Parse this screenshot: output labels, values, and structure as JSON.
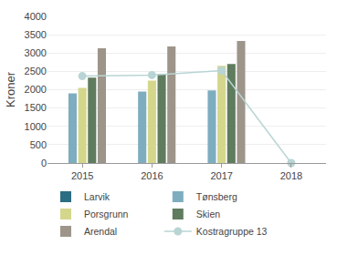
{
  "chart_data": {
    "type": "bar",
    "y_label": "Kroner",
    "categories": [
      "2015",
      "2016",
      "2017",
      "2018"
    ],
    "series": [
      {
        "name": "Larvik",
        "color": "#2b6e83",
        "type": "bar",
        "values": [
          null,
          null,
          null,
          null
        ]
      },
      {
        "name": "Tønsberg",
        "color": "#7dadbf",
        "type": "bar",
        "values": [
          1900,
          1950,
          1980,
          null
        ]
      },
      {
        "name": "Porsgrunn",
        "color": "#d4d68c",
        "type": "bar",
        "values": [
          2050,
          2250,
          2650,
          null
        ]
      },
      {
        "name": "Skien",
        "color": "#5f7c5e",
        "type": "bar",
        "values": [
          2330,
          2420,
          2700,
          null
        ]
      },
      {
        "name": "Arendal",
        "color": "#9d958a",
        "type": "bar",
        "values": [
          3130,
          3180,
          3330,
          null
        ]
      },
      {
        "name": "Kostragruppe 13",
        "color": "#b9d4d4",
        "type": "line",
        "marker": "circle",
        "values": [
          2370,
          2400,
          2520,
          0
        ]
      }
    ],
    "ylim": [
      0,
      4000
    ],
    "yticks": [
      0,
      500,
      1000,
      1500,
      2000,
      2500,
      3000,
      3500,
      4000
    ],
    "grid": true,
    "legend": "bottom"
  }
}
